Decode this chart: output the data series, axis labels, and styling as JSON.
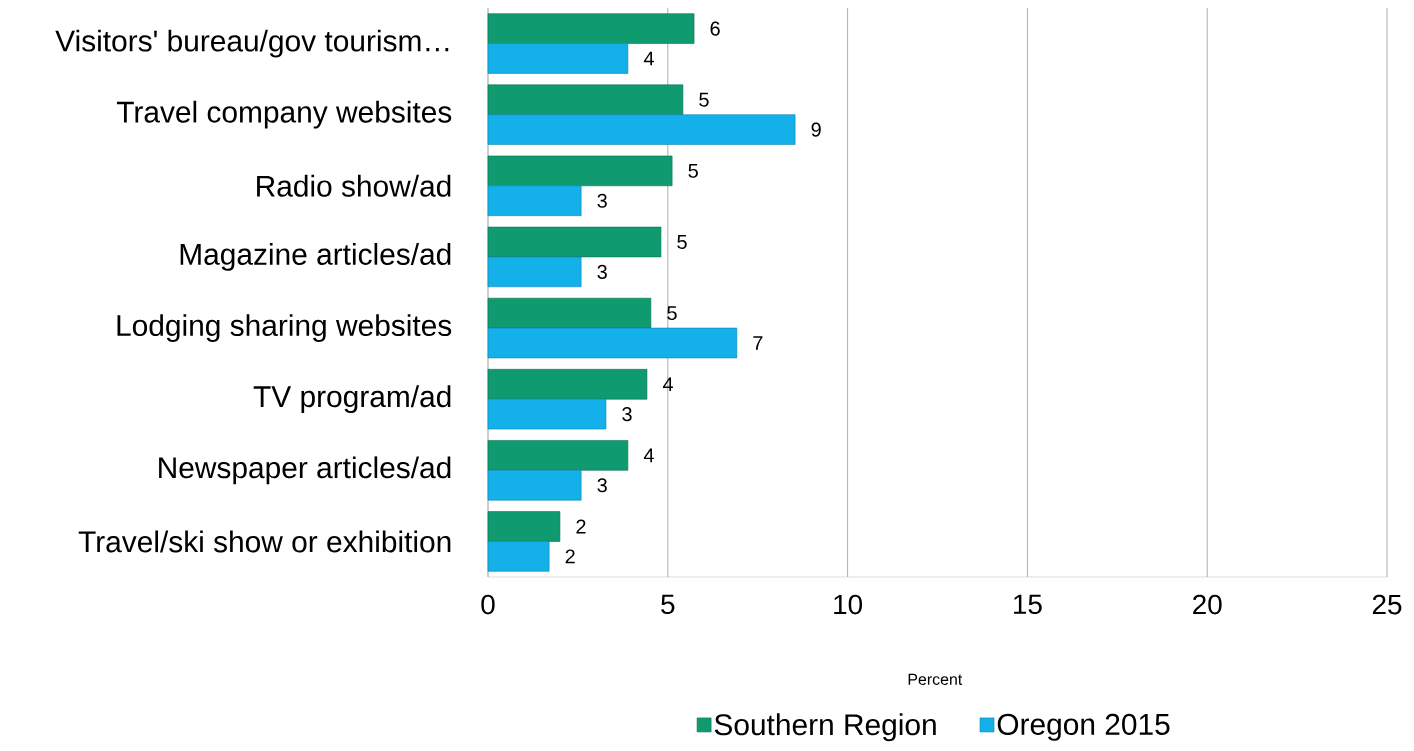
{
  "chart_data": {
    "type": "bar",
    "orientation": "horizontal",
    "categories": [
      "Visitors' bureau/gov tourism…",
      "Travel company websites",
      "Radio show/ad",
      "Magazine articles/ad",
      "Lodging sharing websites",
      "TV program/ad",
      "Newspaper articles/ad",
      "Travel/ski show or exhibition"
    ],
    "series": [
      {
        "name": "Southern Region",
        "color": "#0f9b6f",
        "values": [
          5.73,
          5.42,
          5.12,
          4.81,
          4.53,
          4.42,
          3.89,
          2.0
        ],
        "value_labels": [
          "6",
          "5",
          "5",
          "5",
          "5",
          "4",
          "4",
          "2"
        ]
      },
      {
        "name": "Oregon 2015",
        "color": "#13b0e9",
        "values": [
          3.89,
          8.54,
          2.59,
          2.59,
          6.92,
          3.28,
          2.59,
          1.7
        ],
        "value_labels": [
          "4",
          "9",
          "3",
          "3",
          "7",
          "3",
          "3",
          "2"
        ]
      }
    ],
    "xlabel": "Percent",
    "xlim": [
      0,
      25
    ],
    "xticks": [
      0,
      5,
      10,
      15,
      20,
      25
    ],
    "grid": "x",
    "legend": "bottom"
  }
}
